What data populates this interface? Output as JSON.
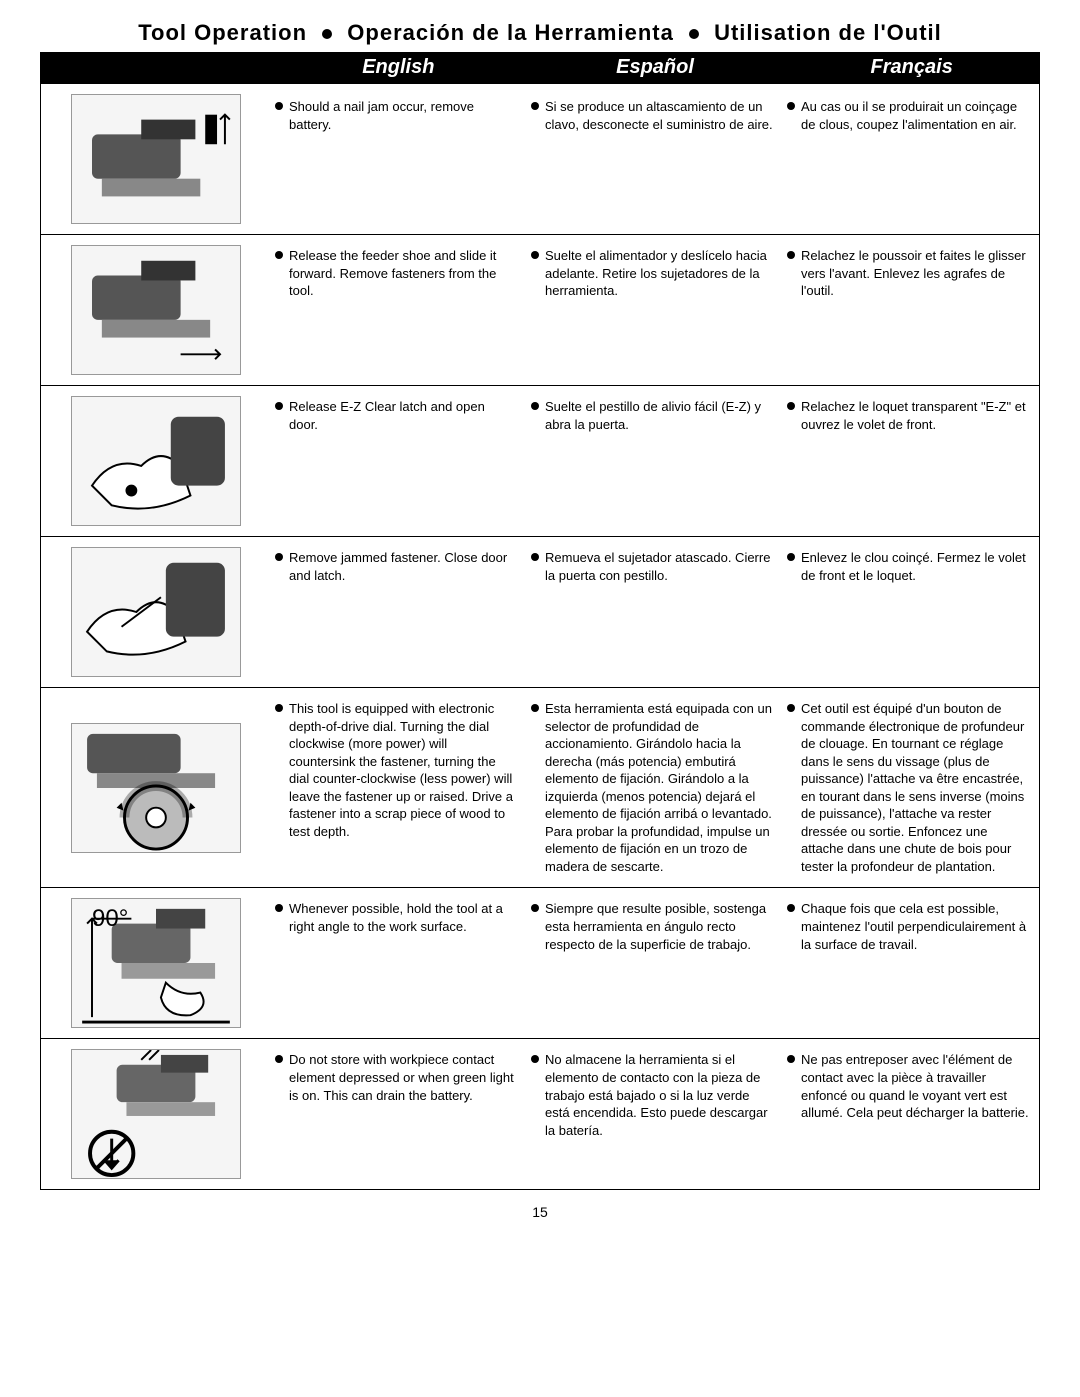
{
  "title_parts": [
    "Tool Operation",
    "Operación de la Herramienta",
    "Utilisation de l'Outil"
  ],
  "lang_headers": [
    "English",
    "Español",
    "Français"
  ],
  "page_number": "15",
  "rows": [
    {
      "illus_label": "nailer-remove-battery",
      "angle": "",
      "en": "Should a nail jam occur, remove battery.",
      "es": "Si se produce un altascamiento de un clavo, desconecte el suministro de aire.",
      "fr": "Au cas ou il se produirait un coinçage de clous, coupez l'alimentation en air."
    },
    {
      "illus_label": "nailer-release-feeder",
      "angle": "",
      "en": "Release the feeder shoe and slide it forward. Remove fasteners from the tool.",
      "es": "Suelte el alimentador y deslícelo hacia adelante. Retire los sujetadores de la herramienta.",
      "fr": "Relachez le poussoir et faites le glisser vers l'avant. Enlevez les agrafes de l'outil."
    },
    {
      "illus_label": "hand-release-latch",
      "angle": "",
      "en": "Release E-Z Clear latch and open door.",
      "es": "Suelte el pestillo de alivio fácil (E-Z) y abra la puerta.",
      "fr": "Relachez le loquet transparent \"E-Z\" et ouvrez le volet de front."
    },
    {
      "illus_label": "hand-remove-jam",
      "angle": "",
      "en": "Remove jammed fastener. Close door and latch.",
      "es": "Remueva el sujetador atascado. Cierre la puerta con pestillo.",
      "fr": "Enlevez le clou coinçé. Fermez le volet de front et le loquet."
    },
    {
      "illus_label": "depth-dial",
      "angle": "",
      "en": "This tool is equipped with electronic depth-of-drive dial. Turning the dial clockwise (more power) will countersink the fastener, turning the dial counter-clockwise (less power) will leave the fastener up or raised. Drive a fastener into a scrap piece of wood to test depth.",
      "es": "Esta herramienta está equipada con un selector de profundidad de accionamiento. Girándolo hacia la derecha (más potencia) embutirá elemento de fijación. Girándolo a la izquierda (menos potencia) dejará el elemento de fijación arribá o levantado. Para probar la profundidad, impulse un elemento de fijación en un trozo de madera de sescarte.",
      "fr": "Cet outil est équipé d'un bouton de commande électronique de profundeur de clouage. En tournant ce réglage dans le sens du vissage (plus de puissance) l'attache va être encastrée, en tourant dans le sens inverse (moins de puissance), l'attache va rester dressée ou sortie. Enfoncez une attache dans une chute de bois pour tester la profondeur de plantation."
    },
    {
      "illus_label": "nailer-right-angle",
      "angle": "90°",
      "en": "Whenever possible, hold the tool at a right angle to the work surface.",
      "es": "Siempre que resulte posible, sostenga esta herramienta en ángulo recto respecto de la superficie de trabajo.",
      "fr": "Chaque fois que cela est possible, maintenez l'outil perpendiculairement à la surface de travail."
    },
    {
      "illus_label": "nailer-storage-warning",
      "angle": "",
      "en": "Do not store with workpiece contact element depressed or when green light is on. This can drain the battery.",
      "es": "No almacene la herramienta si el elemento de contacto con la pieza de trabajo está bajado o si la luz verde está encendida. Esto puede descargar la batería.",
      "fr": "Ne pas entreposer avec l'élément de contact avec la pièce à travailler enfoncé ou quand le voyant vert est allumé. Cela peut décharger la batterie."
    }
  ]
}
